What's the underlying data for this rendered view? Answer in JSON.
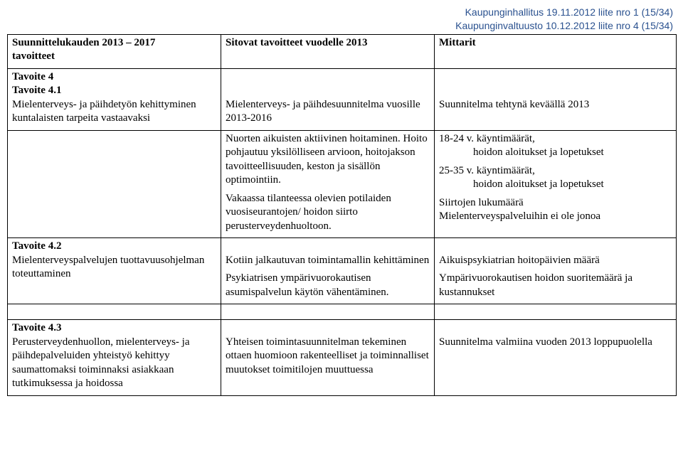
{
  "top_right": {
    "line1": "Kaupunginhallitus 19.11.2012 liite nro 1 (15/34)",
    "line2": "Kaupunginvaltuusto 10.12.2012 liite nro 4 (15/34)"
  },
  "headers": {
    "col1_line1": "Suunnittelukauden 2013 – 2017",
    "col1_line2": "tavoitteet",
    "col2": "Sitovat tavoitteet vuodelle 2013",
    "col3": "Mittarit"
  },
  "r1": {
    "c1_tavoite4": "Tavoite 4",
    "c1_tavoite41": "Tavoite 4.1",
    "c1_body": "Mielenterveys- ja päihdetyön kehittyminen kuntalaisten tarpeita vastaavaksi",
    "c2_body": "Mielenterveys- ja päihdesuunnitelma vuosille 2013-2016",
    "c3_body": "Suunnitelma tehtynä keväällä 2013"
  },
  "r2": {
    "c2_p1": "Nuorten aikuisten aktiivinen hoitaminen. Hoito pohjautuu yksilölliseen arvioon, hoitojakson tavoitteellisuuden, keston ja sisällön optimointiin.",
    "c2_p2": "Vakaassa tilanteessa olevien potilaiden vuosiseurantojen/ hoidon siirto perusterveydenhuoltoon.",
    "c3_l1a": "18-24 v. käyntimäärät,",
    "c3_l1b": "hoidon aloitukset ja lopetukset",
    "c3_l2a": "25-35 v. käyntimäärät,",
    "c3_l2b": "hoidon aloitukset ja lopetukset",
    "c3_l3": "Siirtojen lukumäärä",
    "c3_l4": "Mielenterveyspalveluihin ei ole jonoa"
  },
  "r3": {
    "c1_h": "Tavoite 4.2",
    "c1_body": "Mielenterveyspalvelujen tuottavuusohjelman toteuttaminen",
    "c2_p1": "Kotiin jalkautuvan toimintamallin kehittäminen",
    "c2_p2": "Psykiatrisen ympärivuorokautisen asumispalvelun käytön vähentäminen.",
    "c3_p1": "Aikuispsykiatrian hoitopäivien määrä",
    "c3_p2": "Ympärivuorokautisen hoidon suoritemäärä ja kustannukset"
  },
  "r4": {
    "c1_h": "Tavoite 4.3",
    "c1_body": "Perusterveydenhuollon, mielenterveys- ja päihdepalveluiden yhteistyö kehittyy saumattomaksi toiminnaksi asiakkaan tutkimuksessa ja hoidossa",
    "c2_body": "Yhteisen toimintasuunnitelman tekeminen ottaen huomioon rakenteelliset ja toiminnalliset muutokset toimitilojen muuttuessa",
    "c3_body": "Suunnitelma valmiina vuoden 2013 loppupuolella"
  }
}
